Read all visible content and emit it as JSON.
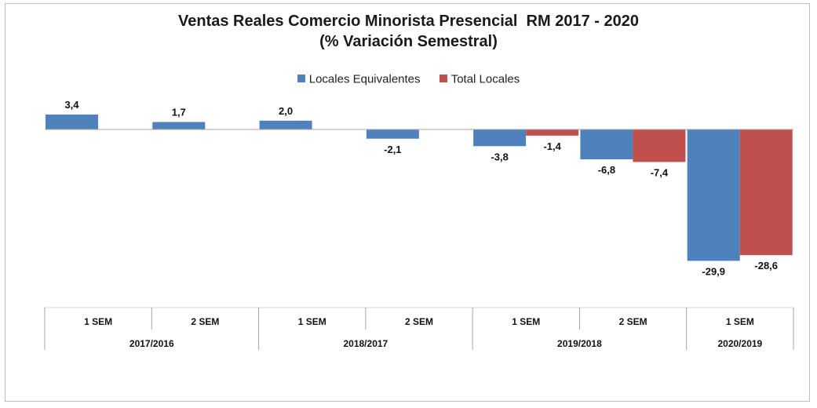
{
  "chart_data": {
    "type": "bar",
    "title_lines": [
      "Ventas Reales Comercio Minorista Presencial  RM 2017 - 2020",
      "(% Variación Semestral)"
    ],
    "categories": [
      "1 SEM",
      "2 SEM",
      "1 SEM",
      "2 SEM",
      "1 SEM",
      "2 SEM",
      "1 SEM"
    ],
    "groups": [
      {
        "label": "2017/2016",
        "span": 2
      },
      {
        "label": "2018/2017",
        "span": 2
      },
      {
        "label": "2019/2018",
        "span": 2
      },
      {
        "label": "2020/2019",
        "span": 1
      }
    ],
    "series": [
      {
        "name": "Locales Equivalentes",
        "color": "#4f81bd",
        "values": [
          3.4,
          1.7,
          2.0,
          -2.1,
          -3.8,
          -6.8,
          -29.9
        ],
        "labels": [
          "3,4",
          "1,7",
          "2,0",
          "-2,1",
          "-3,8",
          "-6,8",
          "-29,9"
        ]
      },
      {
        "name": "Total Locales",
        "color": "#c0504d",
        "values": [
          null,
          null,
          null,
          null,
          -1.4,
          -7.4,
          -28.6
        ],
        "labels": [
          "",
          "",
          "",
          "",
          "-1,4",
          "-7,4",
          "-28,6"
        ]
      }
    ],
    "legend_position": "top",
    "grid": false
  }
}
